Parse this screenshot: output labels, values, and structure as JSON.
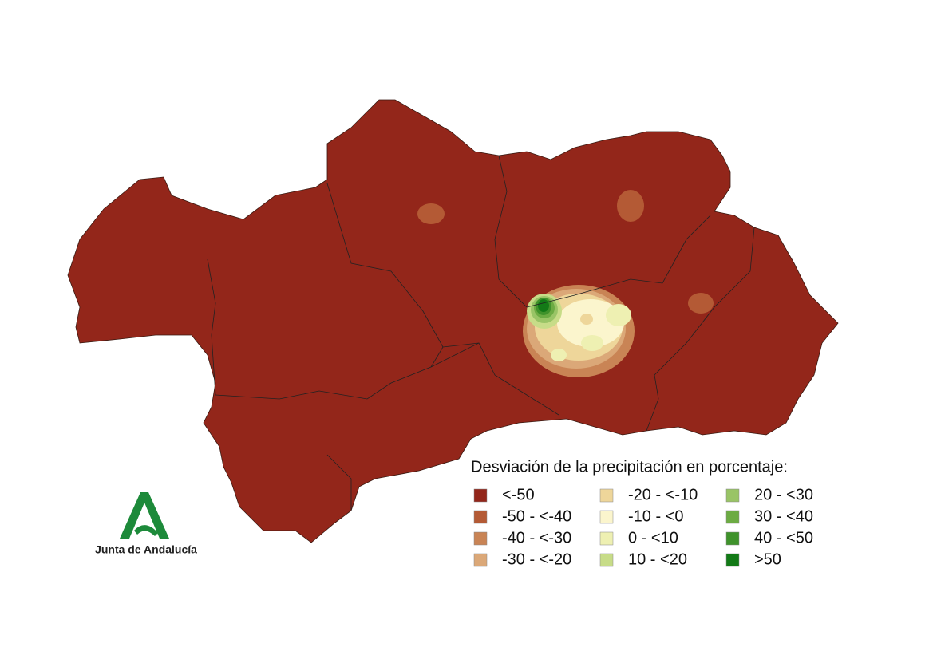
{
  "legend": {
    "title": "Desviación de la precipitación en porcentaje:",
    "items": [
      {
        "label": "<-50",
        "color": "#93261a"
      },
      {
        "label": "-50 - <-40",
        "color": "#b45a35"
      },
      {
        "label": "-40 - <-30",
        "color": "#c98455"
      },
      {
        "label": "-30 - <-20",
        "color": "#dba878"
      },
      {
        "label": "-20 - <-10",
        "color": "#eed69a"
      },
      {
        "label": "-10 - <0",
        "color": "#fbf5cd"
      },
      {
        "label": "0 - <10",
        "color": "#eef0b2"
      },
      {
        "label": "10 - <20",
        "color": "#c7dc88"
      },
      {
        "label": "20 - <30",
        "color": "#99c466"
      },
      {
        "label": "30 - <40",
        "color": "#6cab43"
      },
      {
        "label": "40 - <50",
        "color": "#3f922b"
      },
      {
        "label": ">50",
        "color": "#137a17"
      }
    ]
  },
  "logo": {
    "text": "Junta de Andalucía"
  }
}
